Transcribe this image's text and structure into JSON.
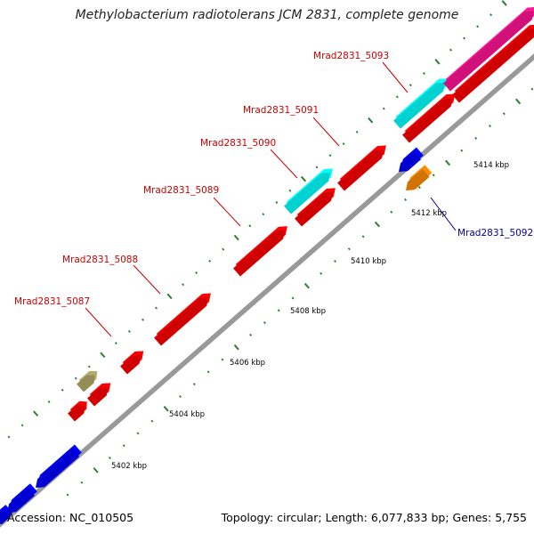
{
  "title": "Methylobacterium radiotolerans JCM 2831, complete genome",
  "accession_text": "Accession: NC_010505",
  "summary_text": "Topology: circular; Length: 6,077,833 bp; Genes: 5,755",
  "colors": {
    "backbone": "#999999",
    "tick": "#2e7d32",
    "label_forward": "#cc0000",
    "label_reverse": "#000099",
    "label_line_forward": "#cc0000",
    "label_line_reverse": "#000099"
  },
  "scale_labels": [
    "5402 kbp",
    "5404 kbp",
    "5406 kbp",
    "5408 kbp",
    "5410 kbp",
    "5412 kbp",
    "5414 kbp"
  ],
  "gene_labels": [
    {
      "name": "Mrad2831_5087",
      "strand": "forward"
    },
    {
      "name": "Mrad2831_5088",
      "strand": "forward"
    },
    {
      "name": "Mrad2831_5089",
      "strand": "forward"
    },
    {
      "name": "Mrad2831_5090",
      "strand": "forward"
    },
    {
      "name": "Mrad2831_5091",
      "strand": "forward"
    },
    {
      "name": "Mrad2831_5093",
      "strand": "forward"
    },
    {
      "name": "Mrad2831_5092",
      "strand": "reverse"
    }
  ],
  "features": [
    {
      "color": "#0000ff",
      "strand": "reverse"
    },
    {
      "color": "#0000ff",
      "strand": "reverse"
    },
    {
      "color": "#0000ff",
      "strand": "reverse"
    },
    {
      "color": "#ff0000",
      "strand": "forward"
    },
    {
      "color": "#ff0000",
      "strand": "forward"
    },
    {
      "color": "#b5ac6b",
      "strand": "forward"
    },
    {
      "color": "#ff0000",
      "strand": "forward"
    },
    {
      "color": "#ff0000",
      "strand": "forward"
    },
    {
      "color": "#ff0000",
      "strand": "forward"
    },
    {
      "color": "#ff0000",
      "strand": "forward"
    },
    {
      "color": "#00ffff",
      "strand": "forward"
    },
    {
      "color": "#ff0000",
      "strand": "forward"
    },
    {
      "color": "#00ffff",
      "strand": "forward"
    },
    {
      "color": "#ff0000",
      "strand": "forward"
    },
    {
      "color": "#ff1493",
      "strand": "forward"
    },
    {
      "color": "#ff0000",
      "strand": "forward"
    },
    {
      "color": "#0000ff",
      "strand": "reverse"
    },
    {
      "color": "#ff8c00",
      "strand": "reverse"
    }
  ]
}
